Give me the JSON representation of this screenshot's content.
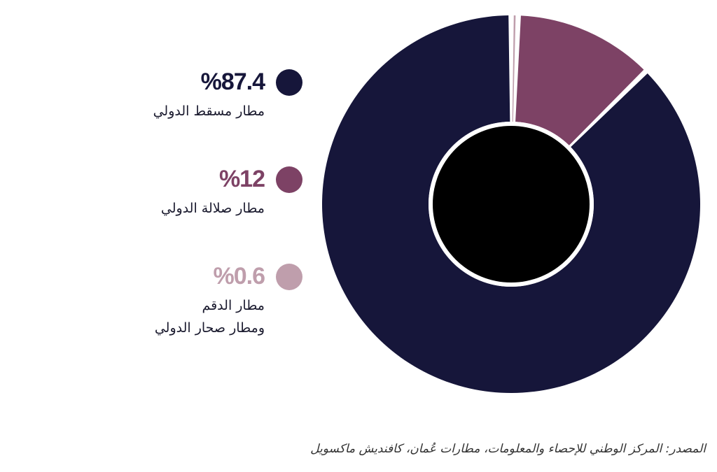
{
  "chart_data": {
    "type": "pie",
    "variant": "donut",
    "categories": [
      "مطار مسقط الدولي",
      "مطار صلالة الدولي",
      "مطار الدقم ومطار صحار الدولي"
    ],
    "values": [
      87.4,
      12,
      0.6
    ],
    "colors": [
      "#16163a",
      "#7d4265",
      "#bf9eac"
    ],
    "title": "",
    "legend_position": "left"
  },
  "legend": [
    {
      "value_label": "%87.4",
      "label_lines": [
        "مطار مسقط الدولي"
      ],
      "color": "#16163a"
    },
    {
      "value_label": "%12",
      "label_lines": [
        "مطار صلالة الدولي"
      ],
      "color": "#7d4265"
    },
    {
      "value_label": "%0.6",
      "label_lines": [
        "مطار الدقم",
        "ومطار صحار الدولي"
      ],
      "color": "#bf9eac"
    }
  ],
  "center_disc_color": "#000000",
  "source": "المصدر: المركز الوطني للإحصاء والمعلومات، مطارات عُمان، كافنديش ماكسويل"
}
